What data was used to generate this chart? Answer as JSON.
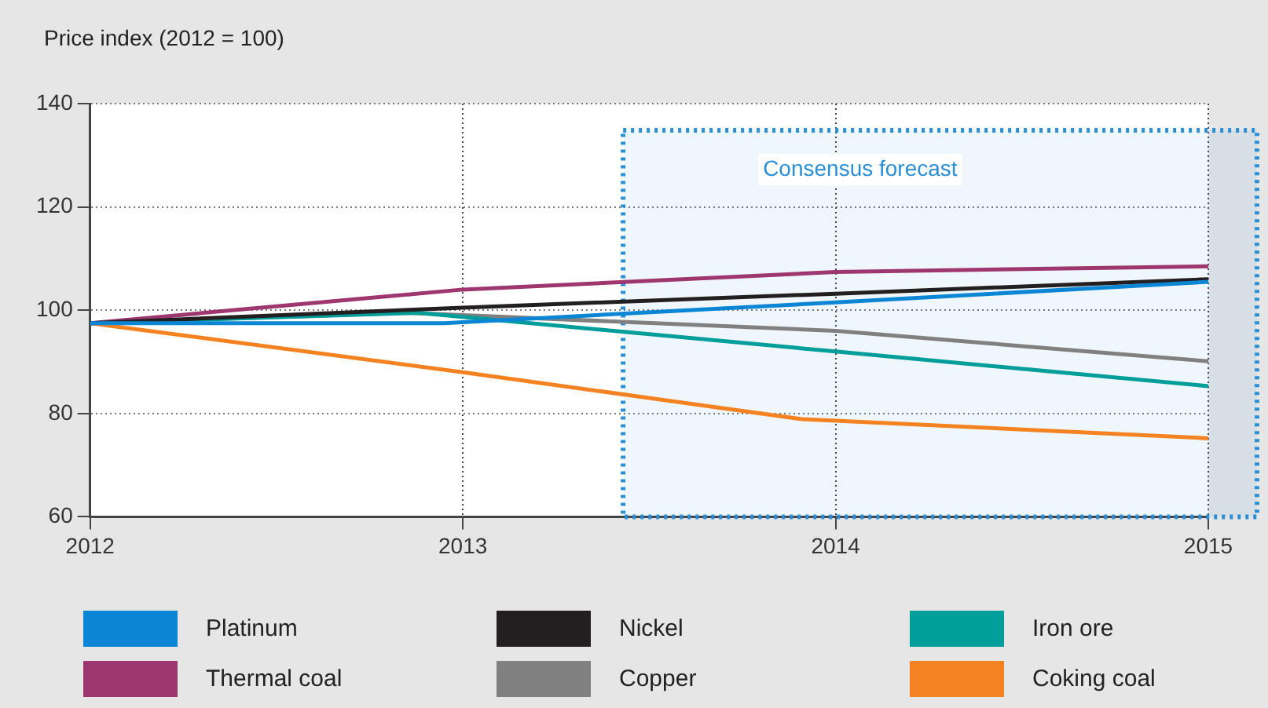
{
  "chart_data": {
    "type": "line",
    "ylabel": "Price index (2012 = 100)",
    "xlim": [
      2012,
      2015
    ],
    "xticks": [
      2012,
      2013,
      2014,
      2015
    ],
    "ylim": [
      60,
      140
    ],
    "yticks": [
      60,
      80,
      100,
      120,
      140
    ],
    "grid": true,
    "legend": "bottom",
    "line_style": "solid",
    "marker": "none",
    "bands": [
      {
        "axis": "x",
        "from": 2013.43,
        "to": 2015,
        "label": "Consensus forecast",
        "color": "#2b8fd6"
      }
    ],
    "series": [
      {
        "name": "Platinum",
        "color": "#0a86d4",
        "x": [
          2012,
          2012.95,
          2014,
          2015
        ],
        "values": [
          97.5,
          97.5,
          101.5,
          105.5
        ]
      },
      {
        "name": "Nickel",
        "color": "#231f20",
        "x": [
          2012,
          2013,
          2014,
          2015
        ],
        "values": [
          97.5,
          100.5,
          103.2,
          106
        ]
      },
      {
        "name": "Iron ore",
        "color": "#009e9a",
        "x": [
          2012,
          2012.88,
          2014,
          2015
        ],
        "values": [
          97.5,
          99.5,
          92,
          85.3
        ]
      },
      {
        "name": "Thermal coal",
        "color": "#9e3670",
        "x": [
          2012,
          2013,
          2014,
          2015
        ],
        "values": [
          97.5,
          104,
          107.4,
          108.5
        ]
      },
      {
        "name": "Copper",
        "color": "#808080",
        "x": [
          2012,
          2012.85,
          2014,
          2015
        ],
        "values": [
          97.5,
          99.5,
          96,
          90.1
        ]
      },
      {
        "name": "Coking coal",
        "color": "#f58220",
        "x": [
          2012,
          2013,
          2013.91,
          2015
        ],
        "values": [
          97.5,
          88,
          78.9,
          75.2
        ]
      }
    ]
  }
}
